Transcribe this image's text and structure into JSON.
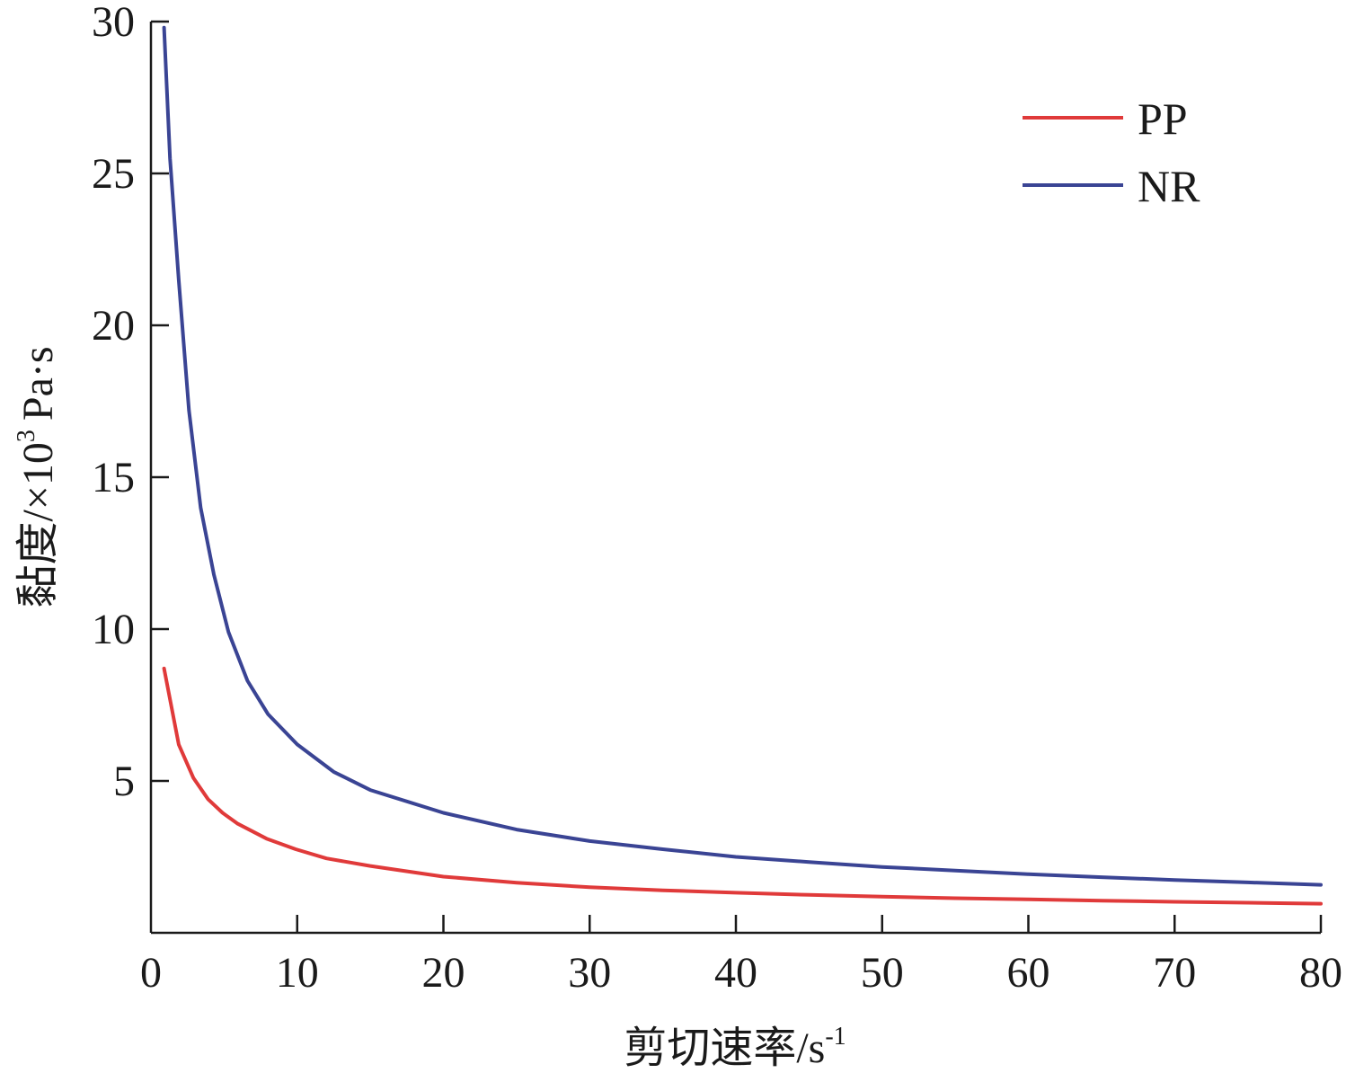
{
  "chart_data": {
    "type": "line",
    "xlabel": "剪切速率/s",
    "xlabel_sup": "-1",
    "ylabel_main": "黏度/×10",
    "ylabel_sup": "3",
    "ylabel_unit": "Pa·s",
    "xlim": [
      0,
      80
    ],
    "ylim": [
      0,
      30
    ],
    "xticks": [
      0,
      10,
      20,
      30,
      40,
      50,
      60,
      70,
      80
    ],
    "yticks": [
      5,
      10,
      15,
      20,
      25,
      30
    ],
    "grid": false,
    "legend_position": "top-right",
    "series": [
      {
        "name": "PP",
        "color": "#e03a3a",
        "x": [
          0.9,
          1.9,
          2.9,
          3.9,
          4.9,
          5.9,
          7.9,
          9.9,
          12,
          15,
          20,
          25,
          30,
          35,
          40,
          45,
          50,
          55,
          60,
          65,
          70,
          75,
          80
        ],
        "y": [
          8.7,
          6.2,
          5.1,
          4.4,
          3.95,
          3.6,
          3.1,
          2.75,
          2.45,
          2.2,
          1.85,
          1.65,
          1.5,
          1.4,
          1.32,
          1.25,
          1.19,
          1.14,
          1.1,
          1.06,
          1.02,
          0.99,
          0.96
        ]
      },
      {
        "name": "NR",
        "color": "#3a4494",
        "x": [
          0.9,
          1.3,
          1.9,
          2.6,
          3.4,
          4.3,
          5.3,
          6.6,
          8,
          10,
          12.5,
          15,
          20,
          25,
          30,
          35,
          40,
          45,
          50,
          55,
          60,
          65,
          70,
          75,
          80
        ],
        "y": [
          29.8,
          25.5,
          21.5,
          17.2,
          14.0,
          11.8,
          9.9,
          8.3,
          7.2,
          6.2,
          5.3,
          4.7,
          3.95,
          3.4,
          3.02,
          2.75,
          2.5,
          2.33,
          2.17,
          2.05,
          1.93,
          1.83,
          1.74,
          1.66,
          1.58
        ]
      }
    ]
  }
}
